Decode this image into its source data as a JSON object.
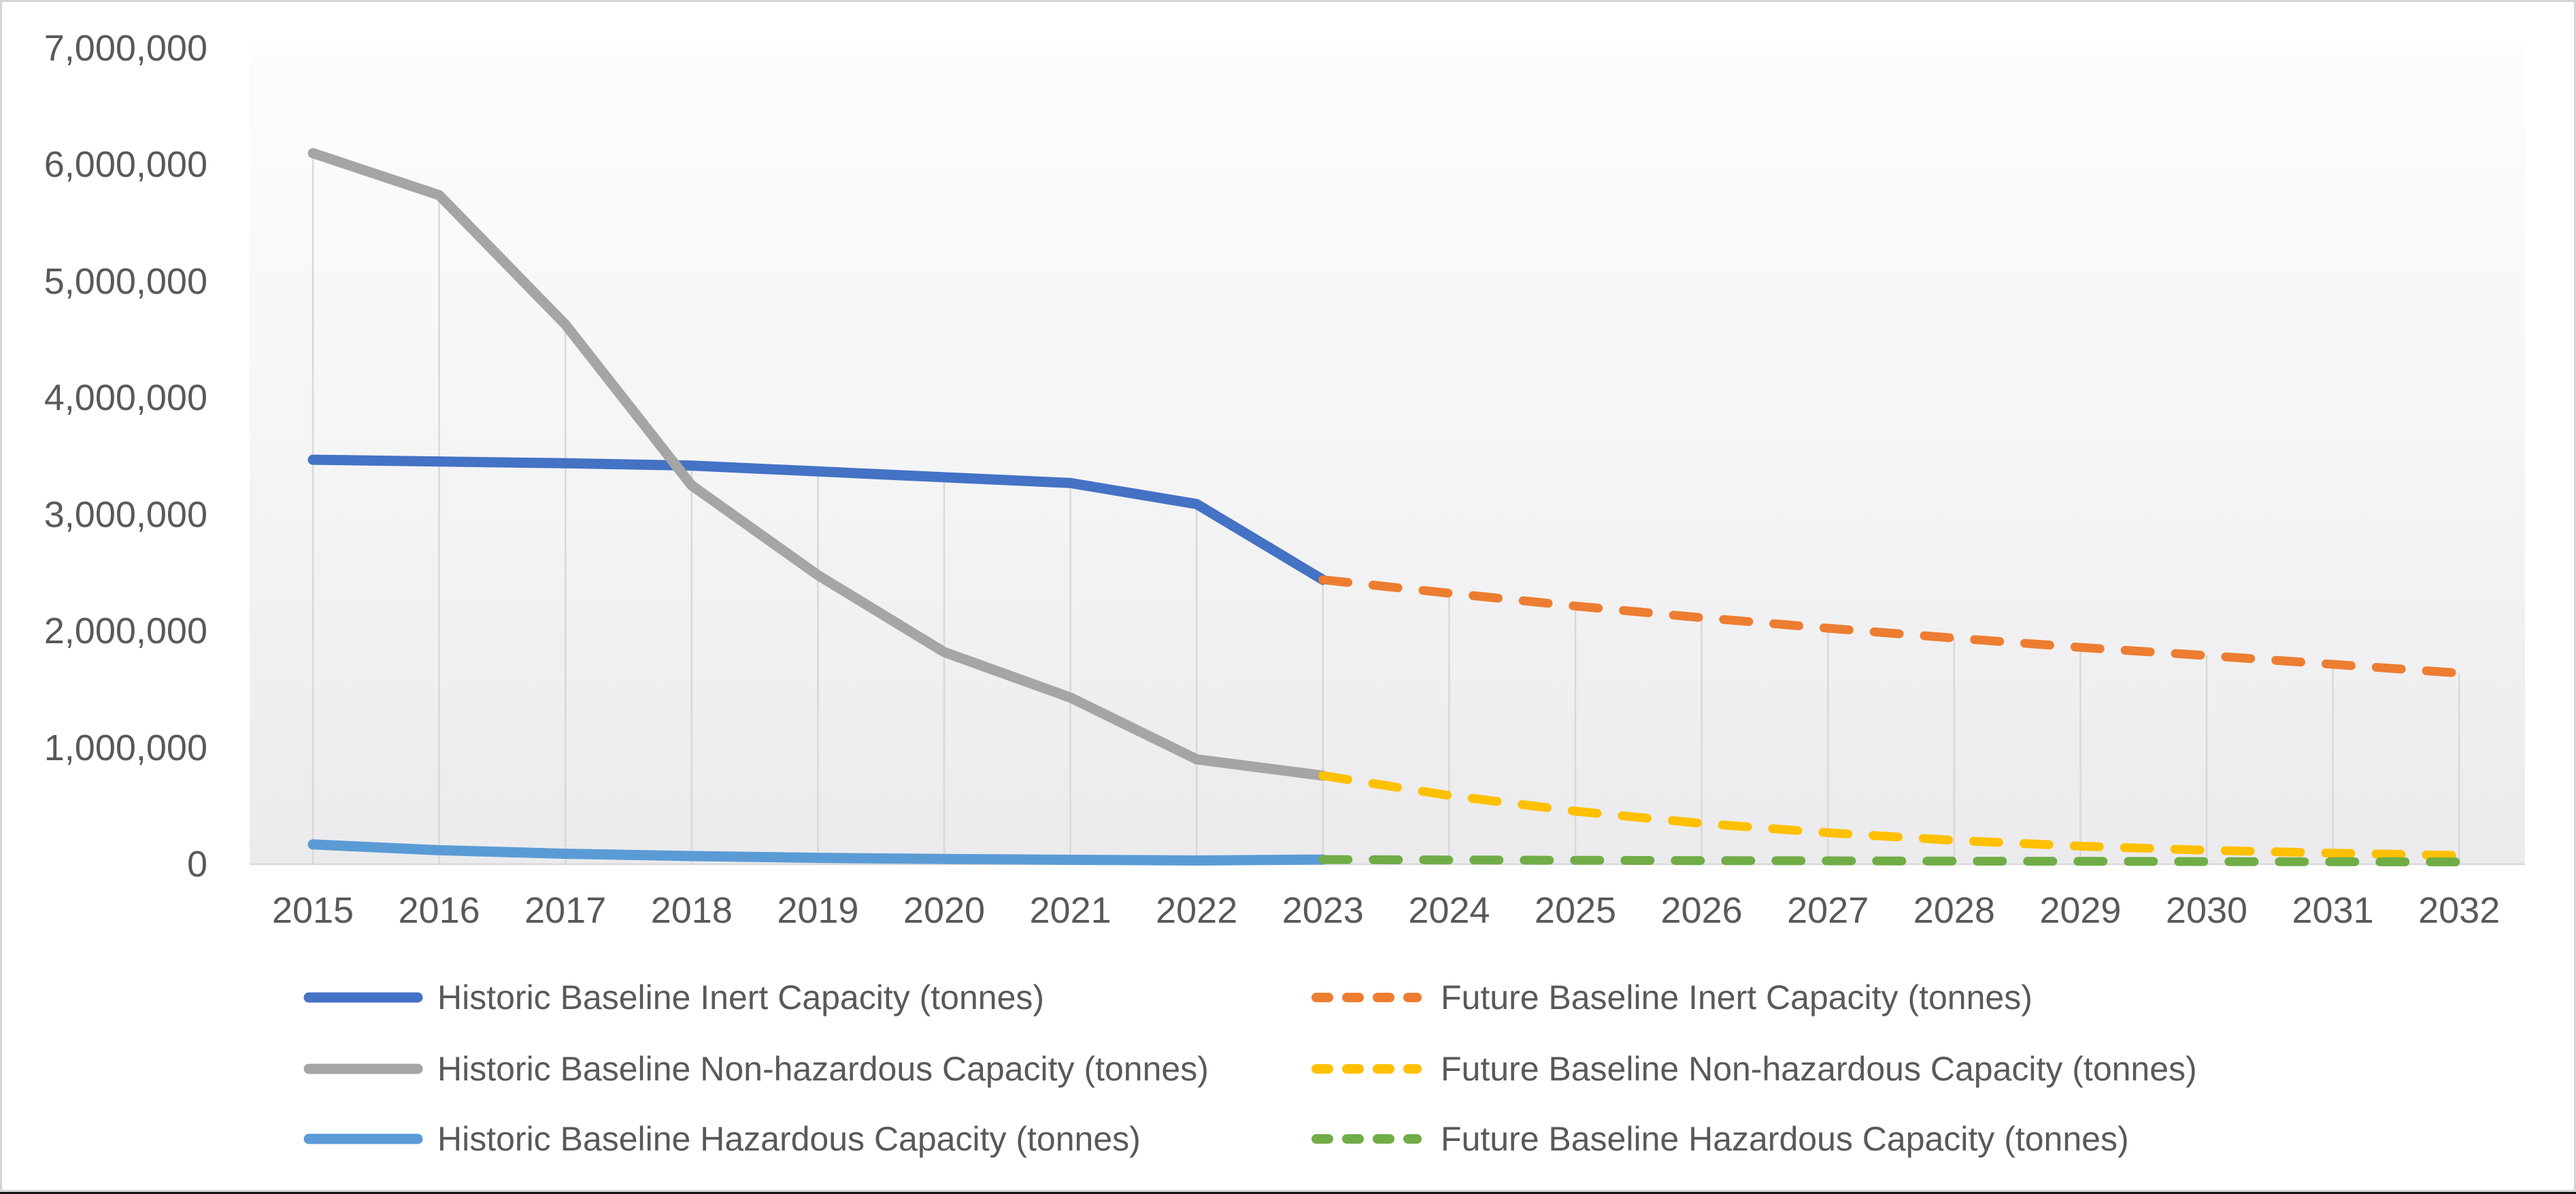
{
  "chart_data": {
    "type": "line",
    "title": "",
    "xlabel": "",
    "ylabel": "",
    "ylim": [
      0,
      7000000
    ],
    "y_tick_step": 1000000,
    "grid": "vertical-drop-lines",
    "legend_position": "bottom-two-columns",
    "axis_text_color": "#595959",
    "axis_line_color": "#d9d9d9",
    "x_values": [
      2015,
      2016,
      2017,
      2018,
      2019,
      2020,
      2021,
      2022,
      2023,
      2024,
      2025,
      2026,
      2027,
      2028,
      2029,
      2030,
      2031,
      2032
    ],
    "x_labels": [
      "2015",
      "2016",
      "2017",
      "2018",
      "2019",
      "2020",
      "2021",
      "2022",
      "2023",
      "2024",
      "2025",
      "2026",
      "2027",
      "2028",
      "2029",
      "2030",
      "2031",
      "2032"
    ],
    "y_tick_labels": [
      "7,000,000",
      "6,000,000",
      "5,000,000",
      "4,000,000",
      "3,000,000",
      "2,000,000",
      "1,000,000",
      "0"
    ],
    "series": [
      {
        "name": "Historic Baseline Inert Capacity (tonnes)",
        "color": "#4472C4",
        "line_style": "solid",
        "start_year": 2015,
        "values": [
          3470000,
          3455000,
          3440000,
          3420000,
          3370000,
          3320000,
          3270000,
          3090000,
          2440000
        ]
      },
      {
        "name": "Future Baseline Inert Capacity (tonnes)",
        "color": "#ED7D31",
        "line_style": "dashed",
        "start_year": 2023,
        "values": [
          2440000,
          2325000,
          2215000,
          2115000,
          2025000,
          1940000,
          1860000,
          1790000,
          1715000,
          1640000
        ]
      },
      {
        "name": "Historic Baseline Non-hazardous Capacity (tonnes)",
        "color": "#A5A5A5",
        "line_style": "solid",
        "start_year": 2015,
        "values": [
          6100000,
          5740000,
          4630000,
          3250000,
          2480000,
          1820000,
          1430000,
          900000,
          760000
        ]
      },
      {
        "name": "Future Baseline Non-hazardous Capacity (tonnes)",
        "color": "#FFC000",
        "line_style": "dashed",
        "start_year": 2023,
        "values": [
          760000,
          590000,
          455000,
          350000,
          270000,
          205000,
          155000,
          120000,
          95000,
          75000
        ]
      },
      {
        "name": "Historic Baseline Hazardous Capacity (tonnes)",
        "color": "#5B9BD5",
        "line_style": "solid",
        "start_year": 2015,
        "values": [
          170000,
          120000,
          90000,
          70000,
          55000,
          45000,
          38000,
          32000,
          40000
        ]
      },
      {
        "name": "Future Baseline Hazardous Capacity (tonnes)",
        "color": "#70AD47",
        "line_style": "dashed",
        "start_year": 2023,
        "values": [
          40000,
          37000,
          34000,
          31000,
          29000,
          27000,
          25000,
          23000,
          21000,
          20000
        ]
      }
    ],
    "legend_columns": [
      [
        0,
        2,
        4
      ],
      [
        1,
        3,
        5
      ]
    ]
  }
}
